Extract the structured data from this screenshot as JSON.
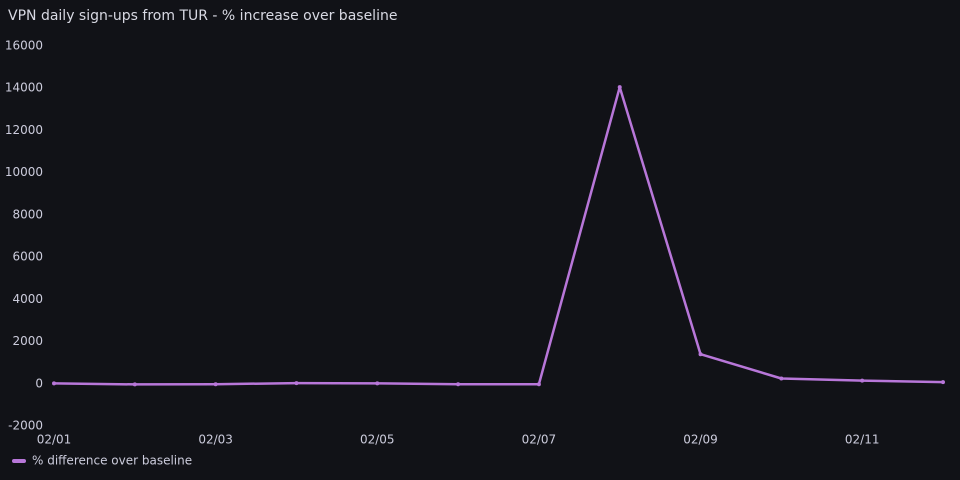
{
  "chart_data": {
    "type": "line",
    "title": "VPN daily sign-ups from TUR - % increase over baseline",
    "categories": [
      "02/01",
      null,
      "02/03",
      null,
      "02/05",
      null,
      "02/07",
      null,
      "02/09",
      null,
      "02/11",
      null
    ],
    "series": [
      {
        "name": "% difference over baseline",
        "color": "#b877d9",
        "values": [
          20,
          -30,
          -20,
          30,
          20,
          -20,
          -20,
          14050,
          1400,
          250,
          150,
          80
        ]
      }
    ],
    "ylim": [
      -2000,
      16000
    ],
    "yticks": [
      -2000,
      0,
      2000,
      4000,
      6000,
      8000,
      10000,
      12000,
      14000,
      16000
    ],
    "grid": false
  }
}
